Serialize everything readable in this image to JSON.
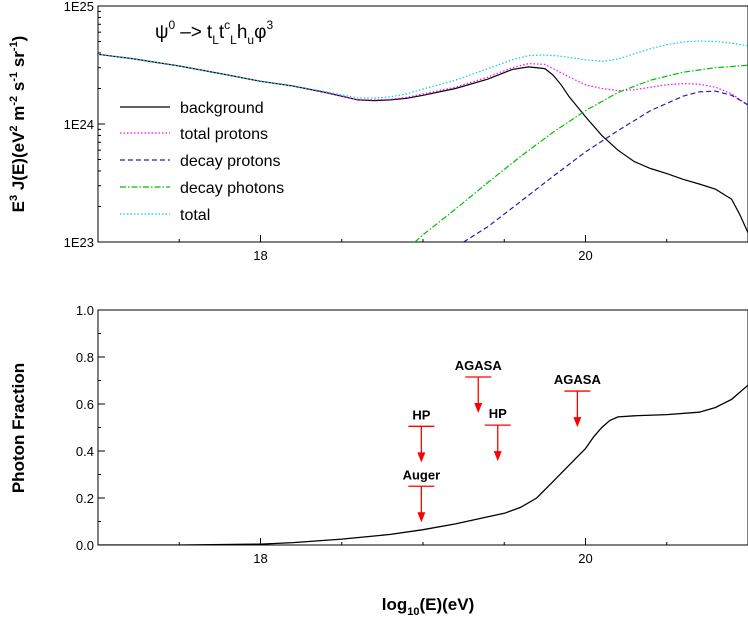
{
  "chart_data": [
    {
      "type": "line",
      "title": "",
      "annotation_text": {
        "base": "ψ",
        "sup0": "0",
        "arrow": "–>",
        "t1": "t",
        "L1": "L",
        "t2": "t",
        "c": "c",
        "L2": "L",
        "h": "h",
        "u": "u",
        "phi": "φ",
        "sup3": "3"
      },
      "xlabel": "",
      "ylabel": {
        "E": "E",
        "three": "3",
        "JE": " J(E)(eV",
        "sq": "2",
        "m": " m",
        "m2": "-2",
        "s": " s",
        "s1": "-1",
        "sr": " sr",
        "sr1": "-1",
        "close": ")"
      },
      "xlim": [
        17.0,
        21.0
      ],
      "yscale": "log",
      "ylim": [
        1e+23,
        1e+25
      ],
      "x_ticks": [
        18,
        20
      ],
      "x_tick_labels": [
        "18",
        "20"
      ],
      "y_ticks": [
        1e+23,
        1e+24,
        1e+25
      ],
      "y_tick_labels": [
        "1E23",
        "1E24",
        "1E25"
      ],
      "legend_position": "left",
      "series": [
        {
          "name": "background",
          "color": "#000000",
          "dash": "solid",
          "x": [
            17.0,
            17.2,
            17.5,
            17.8,
            18.0,
            18.2,
            18.4,
            18.6,
            18.7,
            18.8,
            18.9,
            19.0,
            19.2,
            19.4,
            19.55,
            19.65,
            19.75,
            19.8,
            19.85,
            19.9,
            20.0,
            20.1,
            20.2,
            20.3,
            20.4,
            20.5,
            20.6,
            20.7,
            20.8,
            20.9,
            20.95,
            21.0
          ],
          "y": [
            3.9e+24,
            3.6e+24,
            3.1e+24,
            2.6e+24,
            2.3e+24,
            2.1e+24,
            1.85e+24,
            1.6e+24,
            1.58e+24,
            1.6e+24,
            1.65e+24,
            1.75e+24,
            2e+24,
            2.4e+24,
            2.9e+24,
            3.05e+24,
            2.95e+24,
            2.6e+24,
            2.15e+24,
            1.7e+24,
            1.15e+24,
            8e+23,
            6e+23,
            4.8e+23,
            4.2e+23,
            3.8e+23,
            3.4e+23,
            3.1e+23,
            2.8e+23,
            2.3e+23,
            1.7e+23,
            1.2e+23
          ]
        },
        {
          "name": "total protons",
          "color": "#ff00ff",
          "dash": "dotted",
          "x": [
            17.0,
            17.2,
            17.5,
            17.8,
            18.0,
            18.2,
            18.4,
            18.6,
            18.7,
            18.8,
            18.9,
            19.0,
            19.2,
            19.4,
            19.55,
            19.65,
            19.75,
            19.8,
            19.9,
            20.0,
            20.1,
            20.2,
            20.3,
            20.4,
            20.5,
            20.6,
            20.7,
            20.8,
            20.9,
            21.0
          ],
          "y": [
            3.9e+24,
            3.6e+24,
            3.1e+24,
            2.6e+24,
            2.3e+24,
            2.1e+24,
            1.85e+24,
            1.6e+24,
            1.6e+24,
            1.62e+24,
            1.68e+24,
            1.8e+24,
            2.05e+24,
            2.5e+24,
            3e+24,
            3.25e+24,
            3.2e+24,
            2.95e+24,
            2.5e+24,
            2.15e+24,
            2e+24,
            1.92e+24,
            1.95e+24,
            2.05e+24,
            2.15e+24,
            2.2e+24,
            2.18e+24,
            2.05e+24,
            1.8e+24,
            1.45e+24
          ]
        },
        {
          "name": "decay protons",
          "color": "#2020b0",
          "dash": "dashed",
          "x": [
            19.25,
            19.4,
            19.6,
            19.8,
            20.0,
            20.2,
            20.4,
            20.6,
            20.7,
            20.8,
            20.9,
            21.0
          ],
          "y": [
            1e+23,
            1.35e+23,
            2.2e+23,
            3.6e+23,
            5.8e+23,
            8.8e+23,
            1.3e+24,
            1.72e+24,
            1.87e+24,
            1.9e+24,
            1.75e+24,
            1.45e+24
          ]
        },
        {
          "name": "decay photons",
          "color": "#00c000",
          "dash": "dashdot",
          "x": [
            18.95,
            19.0,
            19.2,
            19.4,
            19.6,
            19.8,
            20.0,
            20.2,
            20.4,
            20.6,
            20.8,
            21.0
          ],
          "y": [
            1e+23,
            1.15e+23,
            1.9e+23,
            3.2e+23,
            5.3e+23,
            8.5e+23,
            1.3e+24,
            1.85e+24,
            2.35e+24,
            2.75e+24,
            3e+24,
            3.15e+24
          ]
        },
        {
          "name": "total",
          "color": "#00d0e0",
          "dash": "dotted",
          "x": [
            17.0,
            17.2,
            17.5,
            17.8,
            18.0,
            18.2,
            18.4,
            18.6,
            18.7,
            18.8,
            18.9,
            19.0,
            19.2,
            19.4,
            19.55,
            19.65,
            19.75,
            19.85,
            20.0,
            20.1,
            20.2,
            20.3,
            20.4,
            20.5,
            20.6,
            20.7,
            20.8,
            20.9,
            21.0
          ],
          "y": [
            3.9e+24,
            3.6e+24,
            3.1e+24,
            2.6e+24,
            2.3e+24,
            2.1e+24,
            1.88e+24,
            1.66e+24,
            1.66e+24,
            1.7e+24,
            1.8e+24,
            1.98e+24,
            2.35e+24,
            2.95e+24,
            3.5e+24,
            3.8e+24,
            3.85e+24,
            3.75e+24,
            3.5e+24,
            3.4e+24,
            3.55e+24,
            3.95e+24,
            4.35e+24,
            4.7e+24,
            4.95e+24,
            5.05e+24,
            5e+24,
            4.85e+24,
            4.6e+24
          ]
        }
      ]
    },
    {
      "type": "line",
      "title": "",
      "xlabel": {
        "log": "log",
        "sub": "10",
        "rest": "(E)(eV)"
      },
      "ylabel": "Photon Fraction",
      "xlim": [
        17.0,
        21.0
      ],
      "ylim": [
        0.0,
        1.0
      ],
      "x_ticks": [
        18,
        20
      ],
      "x_tick_labels": [
        "18",
        "20"
      ],
      "y_ticks": [
        0.0,
        0.2,
        0.4,
        0.6,
        0.8,
        1.0
      ],
      "y_tick_labels": [
        "0.0",
        "0.2",
        "0.4",
        "0.6",
        "0.8",
        "1.0"
      ],
      "series": [
        {
          "name": "",
          "color": "#000000",
          "dash": "solid",
          "x": [
            17.0,
            17.5,
            18.0,
            18.2,
            18.5,
            18.8,
            19.0,
            19.2,
            19.4,
            19.5,
            19.6,
            19.7,
            19.8,
            19.9,
            20.0,
            20.05,
            20.1,
            20.15,
            20.2,
            20.3,
            20.5,
            20.7,
            20.8,
            20.9,
            21.0
          ],
          "y": [
            0.0,
            0.0,
            0.004,
            0.01,
            0.025,
            0.045,
            0.065,
            0.09,
            0.12,
            0.135,
            0.16,
            0.2,
            0.27,
            0.34,
            0.41,
            0.46,
            0.5,
            0.53,
            0.545,
            0.55,
            0.555,
            0.565,
            0.585,
            0.62,
            0.68
          ]
        }
      ],
      "upper_limits": [
        {
          "label": "Auger",
          "x": 18.99,
          "y": 0.25,
          "color": "#ff0000"
        },
        {
          "label": "HP",
          "x": 18.99,
          "y": 0.505,
          "color": "#ff0000"
        },
        {
          "label": "AGASA",
          "x": 19.34,
          "y": 0.715,
          "color": "#ff0000"
        },
        {
          "label": "HP",
          "x": 19.46,
          "y": 0.51,
          "color": "#ff0000"
        },
        {
          "label": "AGASA",
          "x": 19.95,
          "y": 0.655,
          "color": "#ff0000"
        }
      ]
    }
  ]
}
